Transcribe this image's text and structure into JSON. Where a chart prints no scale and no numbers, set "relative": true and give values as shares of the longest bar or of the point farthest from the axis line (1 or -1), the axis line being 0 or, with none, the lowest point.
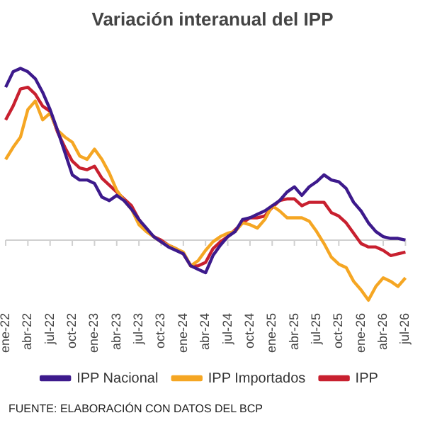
{
  "chart_data": {
    "type": "line",
    "title": "Variación interanual del IPP",
    "relative": true,
    "legend": "bottom",
    "marker": "none",
    "line_style": "solid",
    "grid": false,
    "categories": [
      "ene-22",
      null,
      null,
      "abr-22",
      null,
      null,
      "jul-22",
      null,
      null,
      "oct-22",
      null,
      null,
      "ene-23",
      null,
      null,
      "abr-23",
      null,
      null,
      "jul-23",
      null,
      null,
      "oct-23",
      null,
      null,
      "ene-24",
      null,
      null,
      "abr-24",
      null,
      null,
      "jul-24",
      null,
      null,
      "oct-24",
      null,
      null,
      "ene-25",
      null,
      null,
      "abr-25",
      null,
      null,
      "jul-25",
      null,
      null,
      "oct-25",
      null,
      null,
      "ene-26",
      null,
      null,
      "abr-26",
      null,
      null,
      "jul-26"
    ],
    "series": [
      {
        "name": "IPP Nacional",
        "color": "#3d1a8c",
        "values": [
          0.89,
          0.98,
          1,
          0.98,
          0.94,
          0.86,
          0.76,
          0.64,
          0.51,
          0.38,
          0.35,
          0.35,
          0.33,
          0.25,
          0.23,
          0.26,
          0.23,
          0.18,
          0.12,
          0.07,
          0.02,
          -0.01,
          -0.04,
          -0.06,
          -0.08,
          -0.15,
          -0.17,
          -0.19,
          -0.09,
          -0.03,
          0.02,
          0.05,
          0.12,
          0.13,
          0.15,
          0.17,
          0.2,
          0.23,
          0.28,
          0.31,
          0.26,
          0.31,
          0.34,
          0.38,
          0.35,
          0.34,
          0.3,
          0.22,
          0.17,
          0.1,
          0.05,
          0.02,
          0.01,
          0.01,
          0
        ]
      },
      {
        "name": "IPP Importados",
        "color": "#f5a623",
        "values": [
          0.47,
          0.54,
          0.6,
          0.76,
          0.81,
          0.7,
          0.74,
          0.64,
          0.6,
          0.57,
          0.49,
          0.47,
          0.53,
          0.47,
          0.39,
          0.29,
          0.23,
          0.18,
          0.09,
          0.05,
          0.02,
          -0.01,
          -0.03,
          -0.05,
          -0.07,
          -0.15,
          -0.12,
          -0.06,
          -0.01,
          0.02,
          0.04,
          0.05,
          0.1,
          0.09,
          0.07,
          0.12,
          0.2,
          0.17,
          0.13,
          0.13,
          0.13,
          0.11,
          0.05,
          -0.02,
          -0.1,
          -0.14,
          -0.16,
          -0.24,
          -0.29,
          -0.35,
          -0.27,
          -0.22,
          -0.24,
          -0.27,
          -0.22
        ]
      },
      {
        "name": "IPP",
        "color": "#c8202f",
        "values": [
          0.7,
          0.78,
          0.88,
          0.89,
          0.85,
          0.78,
          0.75,
          0.63,
          0.54,
          0.46,
          0.42,
          0.41,
          0.43,
          0.36,
          0.32,
          0.28,
          0.24,
          0.2,
          0.12,
          0.06,
          0.02,
          0,
          -0.03,
          -0.05,
          -0.08,
          -0.15,
          -0.15,
          -0.13,
          -0.05,
          -0.01,
          0.02,
          0.06,
          0.1,
          0.13,
          0.13,
          0.14,
          0.19,
          0.23,
          0.24,
          0.24,
          0.2,
          0.22,
          0.22,
          0.22,
          0.16,
          0.14,
          0.1,
          0.04,
          -0.02,
          -0.04,
          -0.04,
          -0.06,
          -0.09,
          -0.08,
          -0.07
        ]
      }
    ],
    "annotations": [
      "FUENTE: ELABORACIÓN CON DATOS DEL BCP"
    ]
  }
}
